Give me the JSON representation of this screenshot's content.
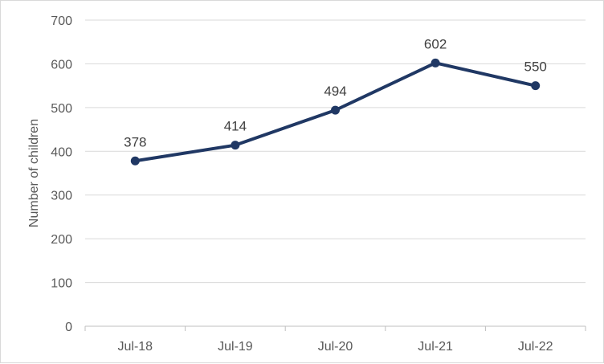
{
  "chart_data": {
    "type": "line",
    "title": "",
    "xlabel": "",
    "ylabel": "Number of children",
    "categories": [
      "Jul-18",
      "Jul-19",
      "Jul-20",
      "Jul-21",
      "Jul-22"
    ],
    "series": [
      {
        "values": [
          378,
          414,
          494,
          602,
          550
        ]
      }
    ],
    "ylim": [
      0,
      700
    ],
    "yticks": [
      0,
      100,
      200,
      300,
      400,
      500,
      600,
      700
    ],
    "grid": true,
    "data_labels": true,
    "legend": "none",
    "colors": {
      "line": "#203864",
      "grid": "#d9d9d9",
      "axis": "#bfbfbf"
    }
  }
}
